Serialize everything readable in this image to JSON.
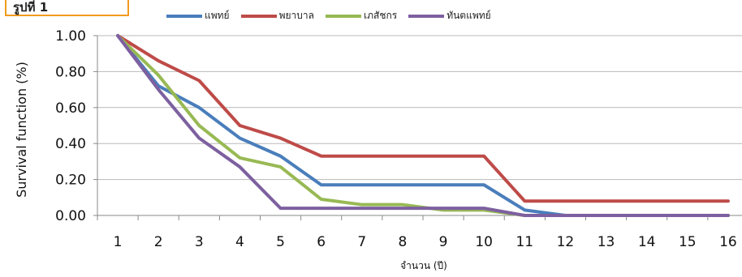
{
  "figure_label": "รูปที่ 1",
  "colors": {
    "series": [
      "#4a7ebb",
      "#be4b48",
      "#98b954",
      "#7d60a0"
    ],
    "grid": "#b9b9b9",
    "axis": "#888888",
    "label_border": "#f29b1d"
  },
  "chart_data": {
    "type": "line",
    "title": "",
    "xlabel": "จำนวน (ปี)",
    "ylabel": "Survival function (%)",
    "x": [
      1,
      2,
      3,
      4,
      5,
      6,
      7,
      8,
      9,
      10,
      11,
      12,
      13,
      14,
      15,
      16
    ],
    "x_ticks": [
      "1",
      "2",
      "3",
      "4",
      "5",
      "6",
      "7",
      "8",
      "9",
      "10",
      "11",
      "12",
      "13",
      "14",
      "15",
      "16"
    ],
    "ylim": [
      0,
      1
    ],
    "y_ticks": [
      "0.00",
      "0.20",
      "0.40",
      "0.60",
      "0.80",
      "1.00"
    ],
    "grid": "horizontal",
    "legend_position": "top",
    "series": [
      {
        "name": "แพทย์",
        "values": [
          1.0,
          0.72,
          0.6,
          0.43,
          0.33,
          0.17,
          0.17,
          0.17,
          0.17,
          0.17,
          0.03,
          0.0,
          0.0,
          0.0,
          0.0,
          0.0
        ]
      },
      {
        "name": "พยาบาล",
        "values": [
          1.0,
          0.86,
          0.75,
          0.5,
          0.43,
          0.33,
          0.33,
          0.33,
          0.33,
          0.33,
          0.08,
          0.08,
          0.08,
          0.08,
          0.08,
          0.08
        ]
      },
      {
        "name": "เภสัชกร",
        "values": [
          1.0,
          0.78,
          0.5,
          0.32,
          0.27,
          0.09,
          0.06,
          0.06,
          0.03,
          0.03,
          0.0,
          0.0,
          0.0,
          0.0,
          0.0,
          0.0
        ]
      },
      {
        "name": "ทันตแพทย์",
        "values": [
          1.0,
          0.7,
          0.43,
          0.27,
          0.04,
          0.04,
          0.04,
          0.04,
          0.04,
          0.04,
          0.0,
          0.0,
          0.0,
          0.0,
          0.0,
          0.0
        ]
      }
    ]
  }
}
